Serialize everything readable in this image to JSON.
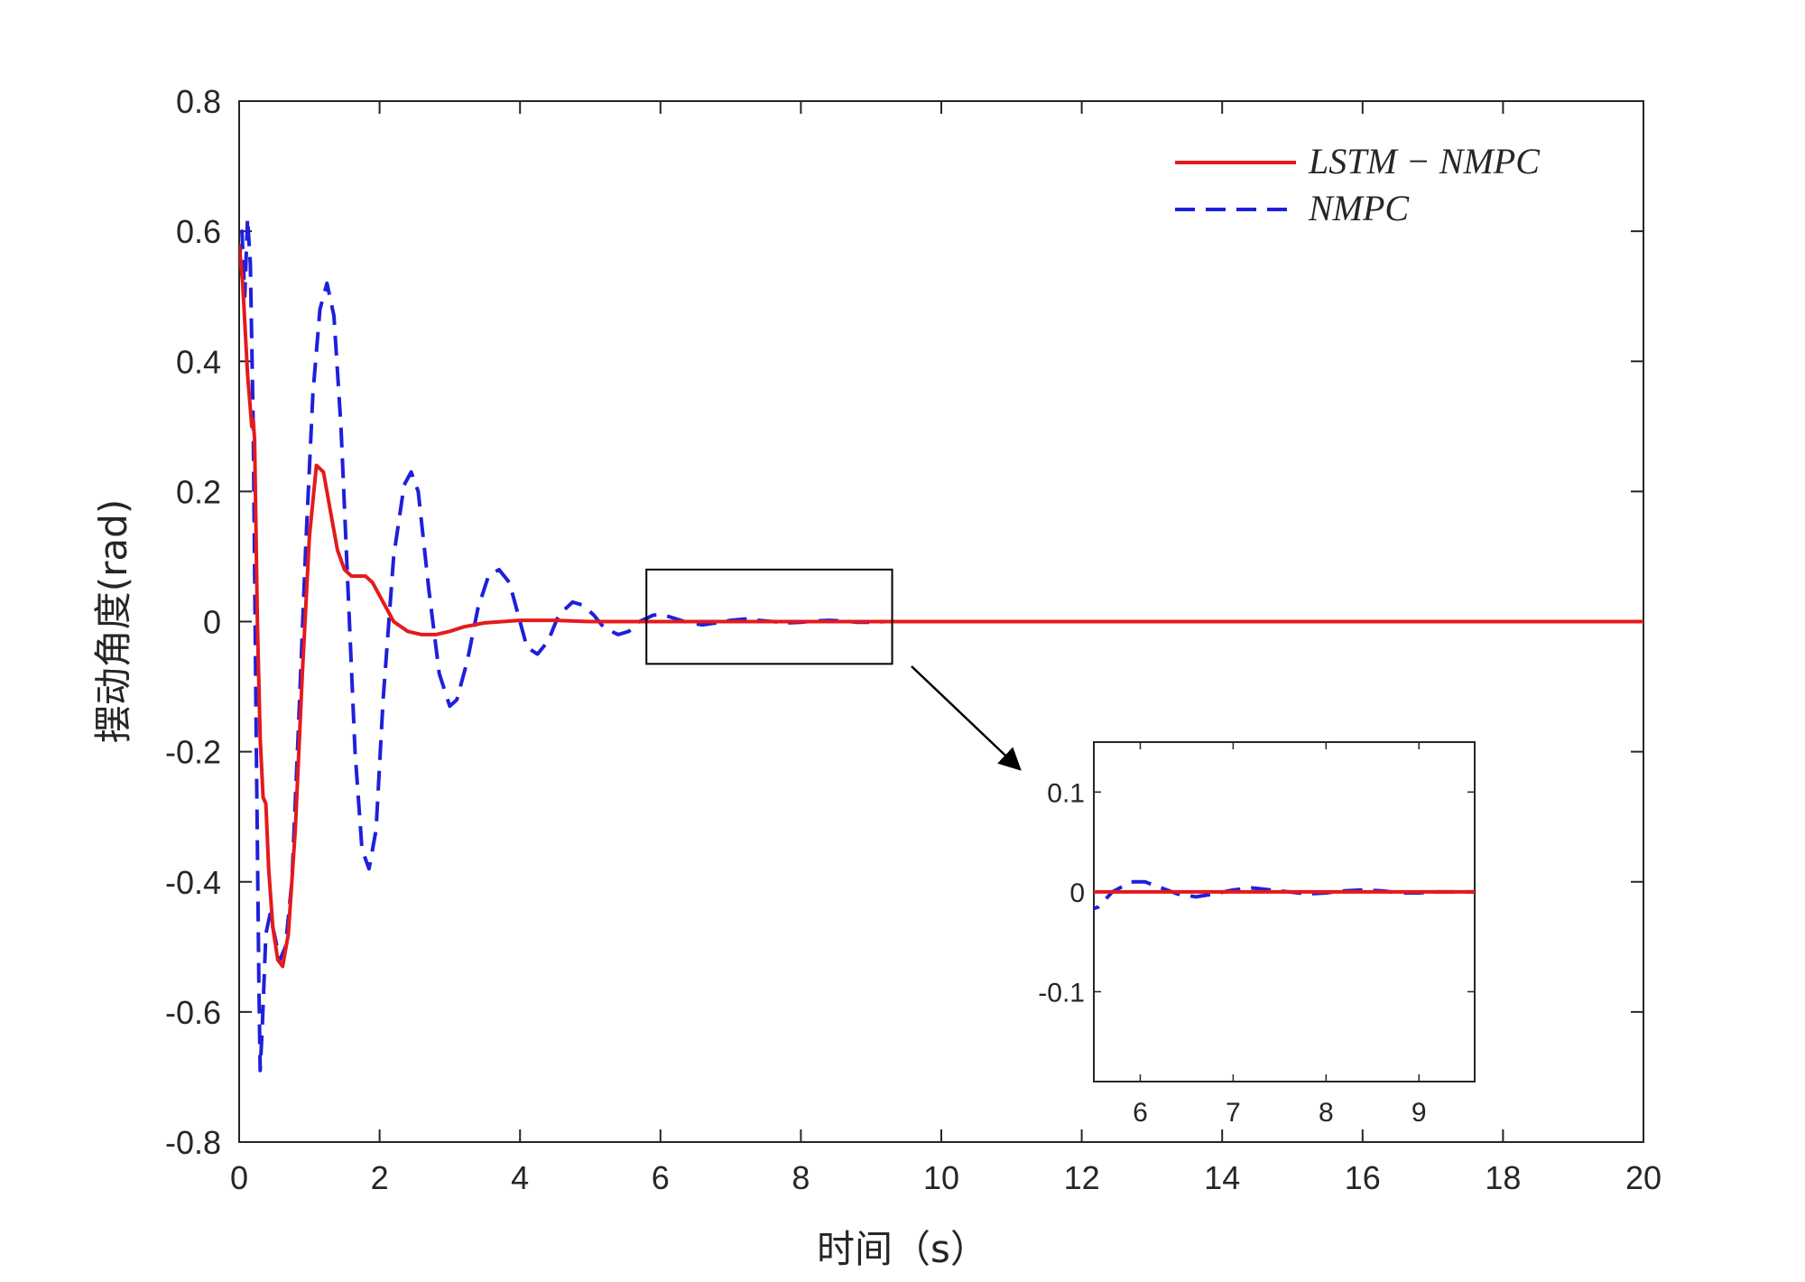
{
  "chart_data": {
    "type": "line",
    "xlabel": "时间（s）",
    "ylabel": "摆动角度(rad)",
    "xlim": [
      0,
      20
    ],
    "ylim": [
      -0.8,
      0.8
    ],
    "xticks": [
      "0",
      "2",
      "4",
      "6",
      "8",
      "10",
      "12",
      "14",
      "16",
      "18",
      "20"
    ],
    "yticks": [
      "0.8",
      "0.6",
      "0.4",
      "0.2",
      "0",
      "-0.2",
      "-0.4",
      "-0.6",
      "-0.8"
    ],
    "grid": false,
    "legend_position": "top-right",
    "series": [
      {
        "name": "LSTM − NMPC",
        "color": "#e41a1c",
        "style": "solid",
        "points": [
          [
            0,
            0.58
          ],
          [
            0.05,
            0.52
          ],
          [
            0.12,
            0.38
          ],
          [
            0.18,
            0.3
          ],
          [
            0.2,
            0.31
          ],
          [
            0.22,
            0.28
          ],
          [
            0.26,
            0.0
          ],
          [
            0.3,
            -0.18
          ],
          [
            0.34,
            -0.27
          ],
          [
            0.38,
            -0.28
          ],
          [
            0.42,
            -0.38
          ],
          [
            0.48,
            -0.47
          ],
          [
            0.55,
            -0.52
          ],
          [
            0.62,
            -0.53
          ],
          [
            0.7,
            -0.48
          ],
          [
            0.8,
            -0.32
          ],
          [
            0.9,
            -0.08
          ],
          [
            1.0,
            0.13
          ],
          [
            1.1,
            0.24
          ],
          [
            1.2,
            0.23
          ],
          [
            1.3,
            0.17
          ],
          [
            1.4,
            0.11
          ],
          [
            1.5,
            0.08
          ],
          [
            1.6,
            0.07
          ],
          [
            1.8,
            0.07
          ],
          [
            1.9,
            0.06
          ],
          [
            2.0,
            0.04
          ],
          [
            2.2,
            0.0
          ],
          [
            2.4,
            -0.015
          ],
          [
            2.6,
            -0.02
          ],
          [
            2.8,
            -0.02
          ],
          [
            3.0,
            -0.015
          ],
          [
            3.2,
            -0.008
          ],
          [
            3.5,
            -0.002
          ],
          [
            4.0,
            0.002
          ],
          [
            4.5,
            0.002
          ],
          [
            5.0,
            0.0
          ],
          [
            6,
            0
          ],
          [
            10,
            0
          ],
          [
            15,
            0
          ],
          [
            20,
            0
          ]
        ]
      },
      {
        "name": "NMPC",
        "color": "#1f1fdc",
        "style": "dashed",
        "points": [
          [
            0,
            0.55
          ],
          [
            0.04,
            0.6
          ],
          [
            0.08,
            0.5
          ],
          [
            0.12,
            0.62
          ],
          [
            0.16,
            0.55
          ],
          [
            0.2,
            0.3
          ],
          [
            0.24,
            -0.15
          ],
          [
            0.28,
            -0.55
          ],
          [
            0.3,
            -0.69
          ],
          [
            0.33,
            -0.62
          ],
          [
            0.38,
            -0.48
          ],
          [
            0.44,
            -0.45
          ],
          [
            0.5,
            -0.48
          ],
          [
            0.58,
            -0.52
          ],
          [
            0.66,
            -0.5
          ],
          [
            0.75,
            -0.4
          ],
          [
            0.85,
            -0.15
          ],
          [
            0.95,
            0.12
          ],
          [
            1.05,
            0.35
          ],
          [
            1.15,
            0.48
          ],
          [
            1.25,
            0.52
          ],
          [
            1.35,
            0.47
          ],
          [
            1.45,
            0.3
          ],
          [
            1.55,
            0.05
          ],
          [
            1.65,
            -0.2
          ],
          [
            1.75,
            -0.35
          ],
          [
            1.85,
            -0.38
          ],
          [
            1.95,
            -0.32
          ],
          [
            2.05,
            -0.12
          ],
          [
            2.2,
            0.1
          ],
          [
            2.35,
            0.21
          ],
          [
            2.45,
            0.23
          ],
          [
            2.55,
            0.2
          ],
          [
            2.7,
            0.05
          ],
          [
            2.85,
            -0.08
          ],
          [
            3.0,
            -0.13
          ],
          [
            3.1,
            -0.12
          ],
          [
            3.25,
            -0.06
          ],
          [
            3.4,
            0.02
          ],
          [
            3.55,
            0.07
          ],
          [
            3.7,
            0.08
          ],
          [
            3.85,
            0.06
          ],
          [
            4.0,
            0.0
          ],
          [
            4.1,
            -0.04
          ],
          [
            4.25,
            -0.05
          ],
          [
            4.4,
            -0.03
          ],
          [
            4.55,
            0.01
          ],
          [
            4.75,
            0.03
          ],
          [
            4.9,
            0.025
          ],
          [
            5.05,
            0.01
          ],
          [
            5.2,
            -0.01
          ],
          [
            5.4,
            -0.02
          ],
          [
            5.55,
            -0.015
          ],
          [
            5.7,
            0.0
          ],
          [
            5.9,
            0.01
          ],
          [
            6.05,
            0.01
          ],
          [
            6.2,
            0.005
          ],
          [
            6.4,
            -0.002
          ],
          [
            6.6,
            -0.005
          ],
          [
            6.8,
            -0.002
          ],
          [
            7.0,
            0.002
          ],
          [
            7.2,
            0.004
          ],
          [
            7.4,
            0.002
          ],
          [
            7.6,
            0.0
          ],
          [
            7.8,
            -0.002
          ],
          [
            8.0,
            -0.001
          ],
          [
            8.2,
            0.001
          ],
          [
            8.4,
            0.002
          ],
          [
            8.6,
            0.001
          ],
          [
            8.8,
            -0.001
          ],
          [
            9.0,
            -0.001
          ],
          [
            9.2,
            0.0
          ],
          [
            10,
            0
          ],
          [
            15,
            0
          ],
          [
            20,
            0
          ]
        ]
      }
    ],
    "inset": {
      "xlim": [
        5.5,
        9.6
      ],
      "ylim": [
        -0.19,
        0.15
      ],
      "xticks": [
        "6",
        "7",
        "8",
        "9"
      ],
      "yticks": [
        "0.1",
        "0",
        "-0.1"
      ],
      "zoom_box": {
        "xlim": [
          5.8,
          9.3
        ],
        "ylim": [
          -0.065,
          0.08
        ]
      }
    }
  }
}
